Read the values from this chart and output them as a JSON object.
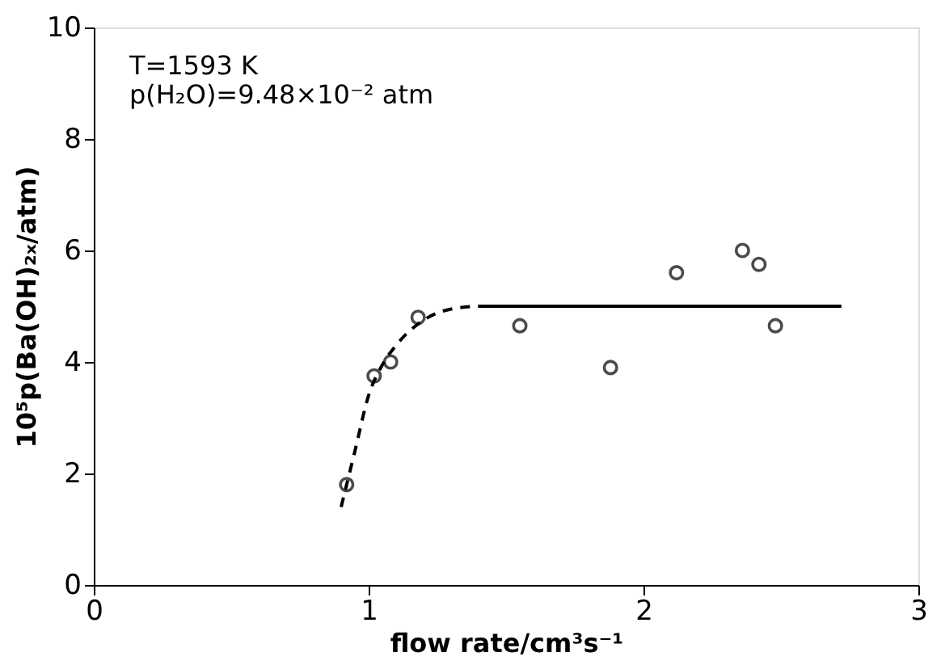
{
  "chart_data": {
    "type": "scatter",
    "xlabel": "flow rate/cm³s⁻¹",
    "ylabel": "10⁵p(Ba(OH)₂ₓ/atm)",
    "annotations": [
      "T=1593 K",
      "p(H₂O)=9.48×10⁻² atm"
    ],
    "xlim": [
      0,
      3
    ],
    "ylim": [
      0,
      10
    ],
    "xticks": [
      0,
      1,
      2,
      3
    ],
    "yticks": [
      0,
      2,
      4,
      6,
      8,
      10
    ],
    "grid": false,
    "series": [
      {
        "color": "#000000",
        "marker": "circle",
        "x": [
          0.92,
          1.02,
          1.08,
          1.18,
          1.55,
          1.88,
          2.12,
          2.36,
          2.42,
          2.48
        ],
        "values": [
          1.8,
          3.75,
          4.0,
          4.8,
          4.65,
          3.9,
          5.6,
          6.0,
          5.75,
          4.65
        ]
      },
      {
        "type": "line",
        "color": "#000000",
        "line_style": "dashed",
        "marker": "none",
        "x": [
          0.9,
          0.95,
          1.0,
          1.05,
          1.1,
          1.2,
          1.3,
          1.4
        ],
        "values": [
          1.4,
          2.4,
          3.4,
          3.95,
          4.3,
          4.75,
          4.95,
          5.0
        ]
      },
      {
        "type": "line",
        "color": "#000000",
        "line_style": "solid",
        "marker": "none",
        "x": [
          1.4,
          2.72
        ],
        "values": [
          5.0,
          5.0
        ]
      }
    ]
  }
}
